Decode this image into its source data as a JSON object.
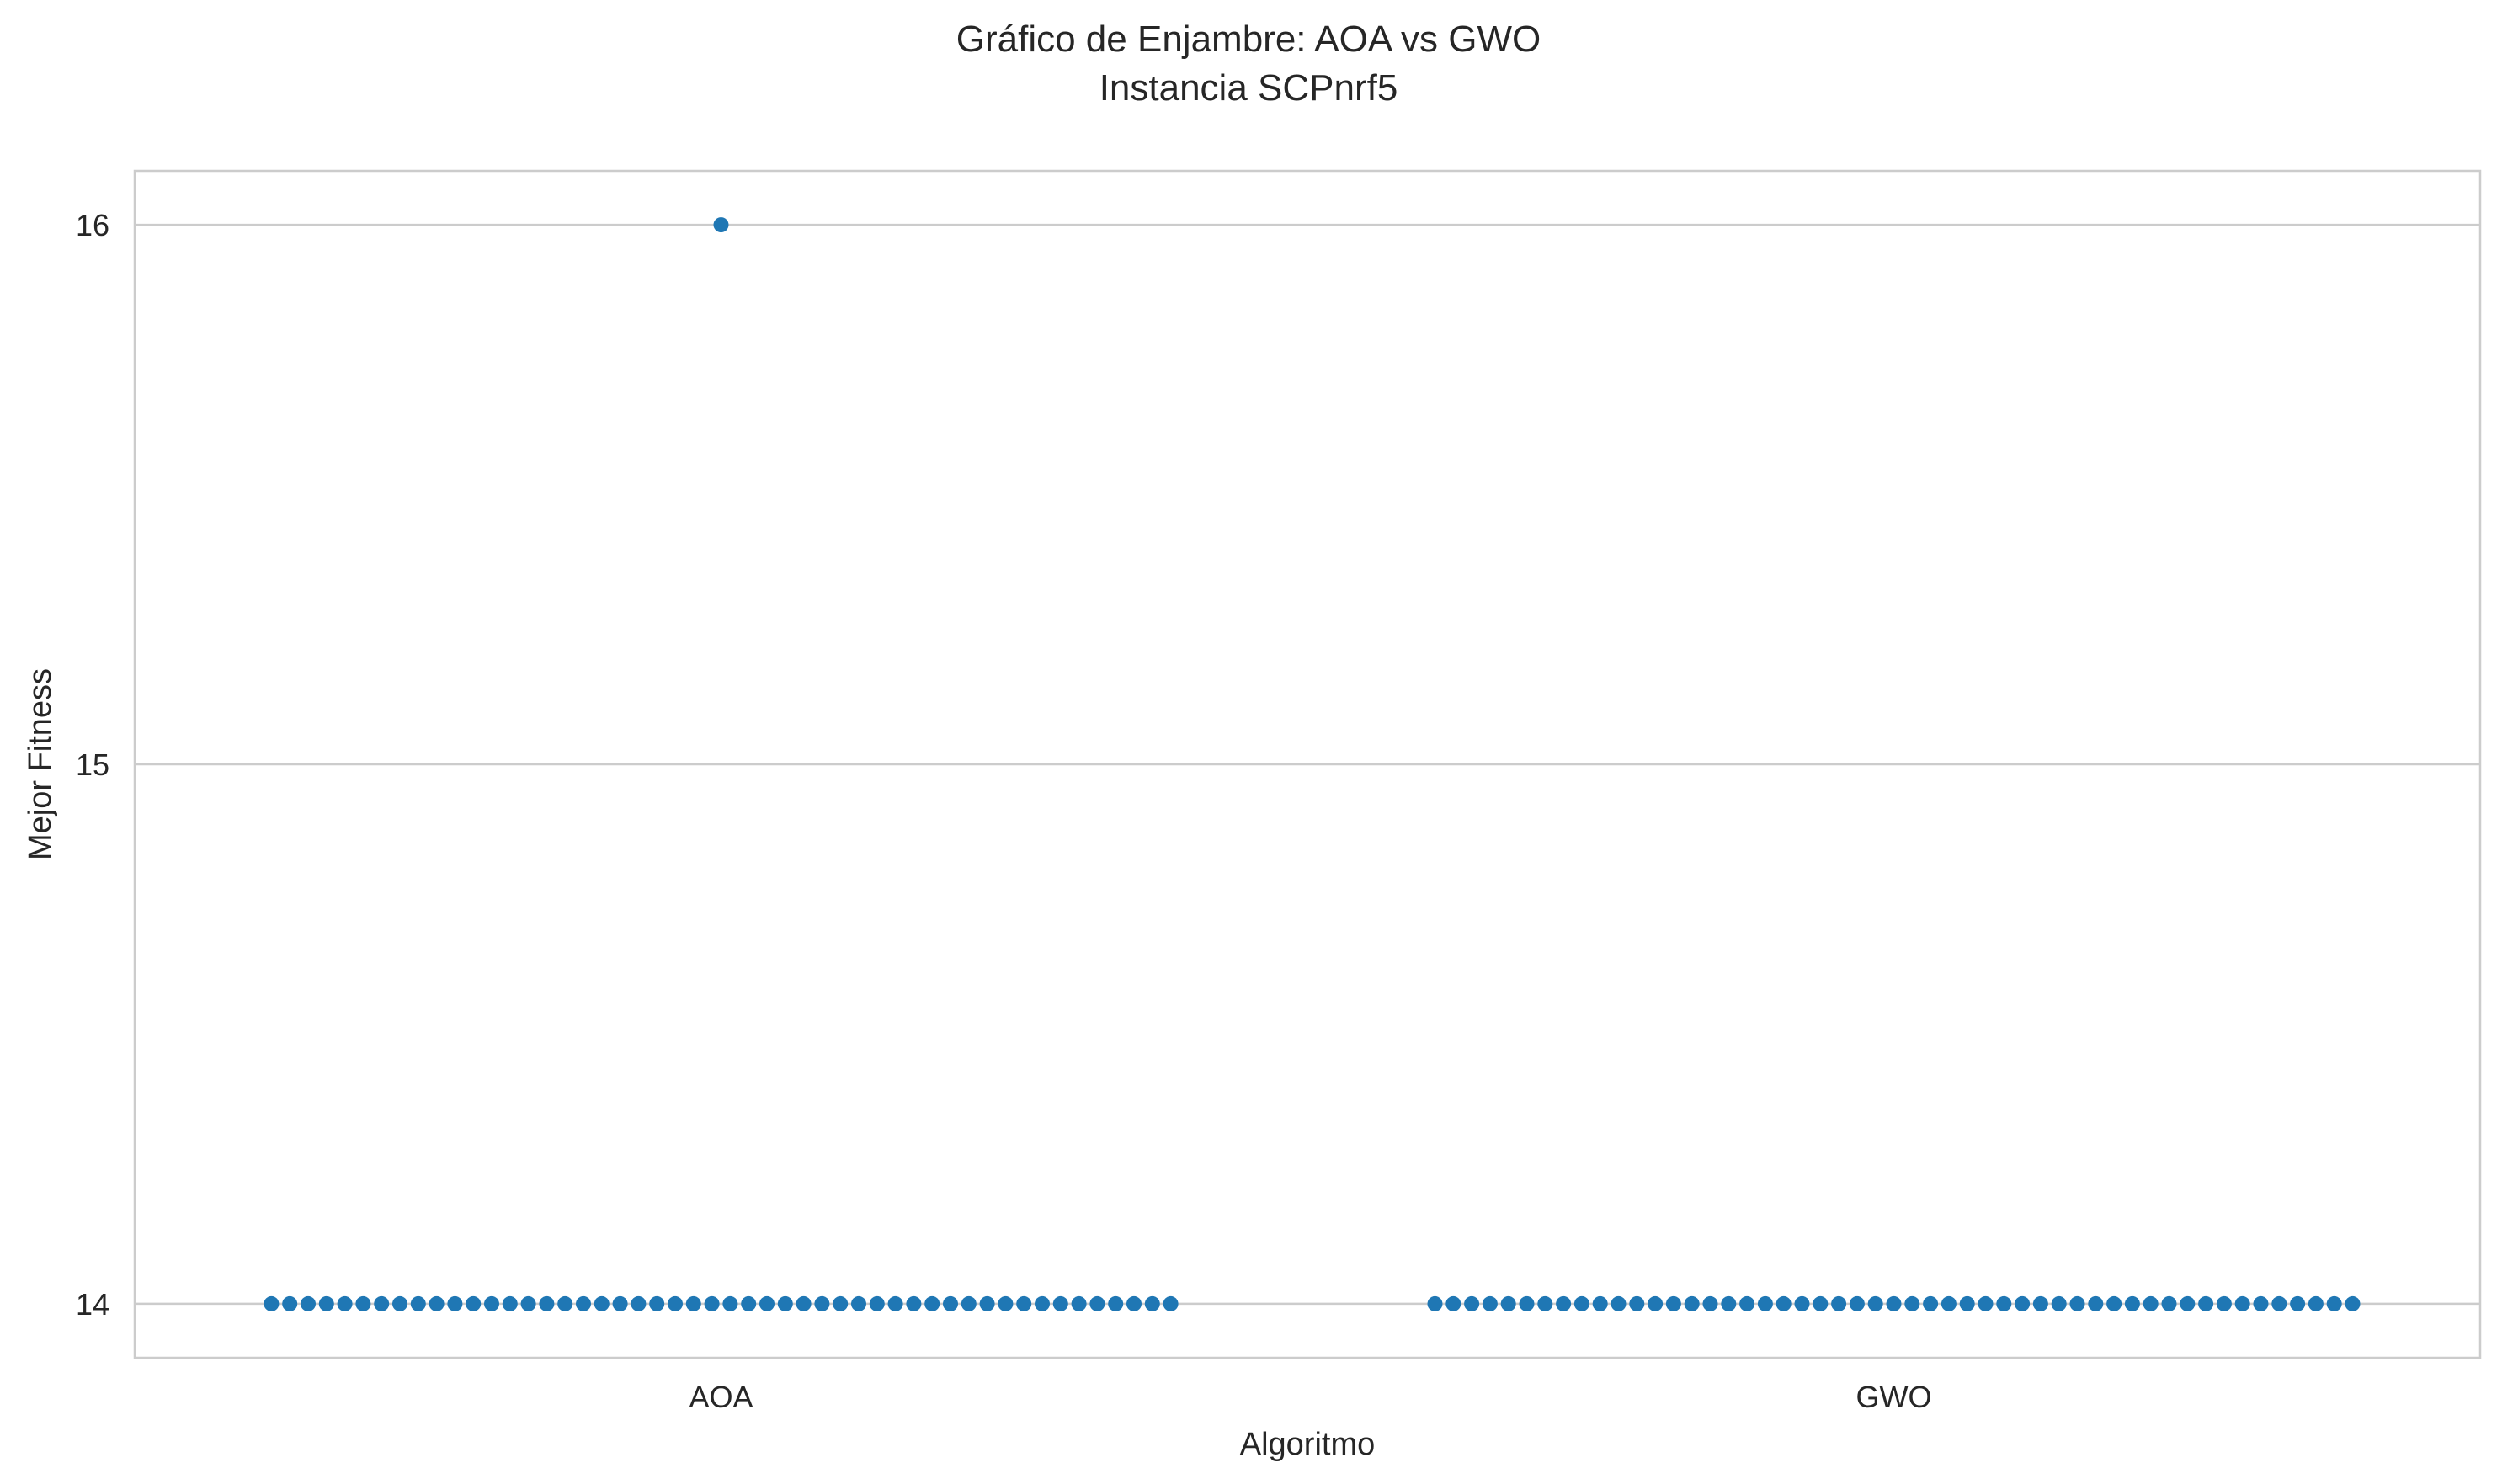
{
  "chart_data": {
    "type": "scatter",
    "subtype": "swarm",
    "title": "Gráfico de Enjambre: AOA vs GWO",
    "subtitle": "Instancia SCPnrf5",
    "xlabel": "Algoritmo",
    "ylabel": "Mejor Fitness",
    "categories": [
      "AOA",
      "GWO"
    ],
    "yticks": [
      "14",
      "15",
      "16"
    ],
    "ylim": [
      13.9,
      16.1
    ],
    "grid": "horizontal",
    "point_color": "#1f77b4",
    "series": [
      {
        "category": "AOA",
        "values": [
          16,
          14,
          14,
          14,
          14,
          14,
          14,
          14,
          14,
          14,
          14,
          14,
          14,
          14,
          14,
          14,
          14,
          14,
          14,
          14,
          14,
          14,
          14,
          14,
          14,
          14,
          14,
          14,
          14,
          14,
          14,
          14,
          14,
          14,
          14,
          14,
          14,
          14,
          14,
          14,
          14,
          14,
          14,
          14,
          14,
          14,
          14,
          14,
          14,
          14,
          14
        ]
      },
      {
        "category": "GWO",
        "values": [
          14,
          14,
          14,
          14,
          14,
          14,
          14,
          14,
          14,
          14,
          14,
          14,
          14,
          14,
          14,
          14,
          14,
          14,
          14,
          14,
          14,
          14,
          14,
          14,
          14,
          14,
          14,
          14,
          14,
          14,
          14,
          14,
          14,
          14,
          14,
          14,
          14,
          14,
          14,
          14,
          14,
          14,
          14,
          14,
          14,
          14,
          14,
          14,
          14,
          14,
          14
        ]
      }
    ]
  }
}
